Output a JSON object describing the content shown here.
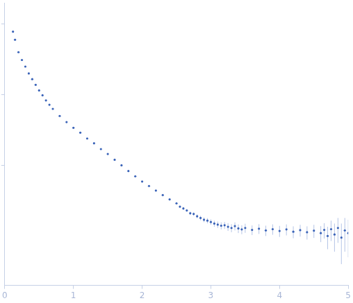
{
  "chart_data": {
    "type": "scatter",
    "x": [
      0.12,
      0.15,
      0.2,
      0.25,
      0.3,
      0.35,
      0.4,
      0.45,
      0.5,
      0.55,
      0.6,
      0.65,
      0.7,
      0.8,
      0.9,
      1.0,
      1.1,
      1.2,
      1.3,
      1.4,
      1.5,
      1.6,
      1.7,
      1.8,
      1.9,
      2.0,
      2.1,
      2.2,
      2.3,
      2.4,
      2.5,
      2.55,
      2.6,
      2.65,
      2.7,
      2.75,
      2.8,
      2.85,
      2.9,
      2.95,
      3.0,
      3.05,
      3.1,
      3.15,
      3.2,
      3.25,
      3.3,
      3.35,
      3.4,
      3.45,
      3.5,
      3.6,
      3.7,
      3.8,
      3.9,
      4.0,
      4.1,
      4.2,
      4.3,
      4.4,
      4.5,
      4.6,
      4.65,
      4.7,
      4.75,
      4.8,
      4.85,
      4.9,
      4.95,
      5.0
    ],
    "values": [
      78,
      60,
      40,
      31,
      25,
      20,
      16.6,
      13.8,
      11.5,
      9.8,
      8.3,
      7.2,
      6.3,
      5.0,
      4.1,
      3.4,
      2.9,
      2.4,
      2.05,
      1.7,
      1.45,
      1.2,
      1.0,
      0.83,
      0.7,
      0.59,
      0.51,
      0.44,
      0.38,
      0.33,
      0.29,
      0.26,
      0.245,
      0.23,
      0.21,
      0.205,
      0.19,
      0.18,
      0.17,
      0.165,
      0.158,
      0.15,
      0.145,
      0.14,
      0.142,
      0.135,
      0.13,
      0.138,
      0.128,
      0.124,
      0.13,
      0.122,
      0.127,
      0.12,
      0.125,
      0.118,
      0.124,
      0.115,
      0.121,
      0.113,
      0.119,
      0.11,
      0.122,
      0.1,
      0.125,
      0.105,
      0.13,
      0.095,
      0.12,
      0.11
    ],
    "errors": [
      0.5,
      0.4,
      0.3,
      0.25,
      0.2,
      0.15,
      0.12,
      0.1,
      0.09,
      0.08,
      0.07,
      0.06,
      0.05,
      0.04,
      0.035,
      0.03,
      0.027,
      0.024,
      0.021,
      0.018,
      0.016,
      0.014,
      0.012,
      0.011,
      0.01,
      0.009,
      0.009,
      0.008,
      0.008,
      0.008,
      0.01,
      0.01,
      0.011,
      0.011,
      0.012,
      0.012,
      0.012,
      0.013,
      0.013,
      0.014,
      0.014,
      0.015,
      0.015,
      0.016,
      0.016,
      0.017,
      0.017,
      0.018,
      0.018,
      0.018,
      0.019,
      0.019,
      0.02,
      0.02,
      0.021,
      0.021,
      0.022,
      0.022,
      0.023,
      0.024,
      0.025,
      0.028,
      0.03,
      0.035,
      0.04,
      0.045,
      0.05,
      0.055,
      0.06,
      0.06
    ],
    "color": "#3a63b8",
    "marker": "circle",
    "log": "y",
    "xlim": [
      0,
      5
    ],
    "xticks": [
      0,
      1,
      2,
      3,
      4,
      5
    ],
    "ylim": [
      0.02,
      200
    ],
    "yticks": [
      1,
      10,
      100
    ],
    "grid": false,
    "tick_labels": "x"
  }
}
